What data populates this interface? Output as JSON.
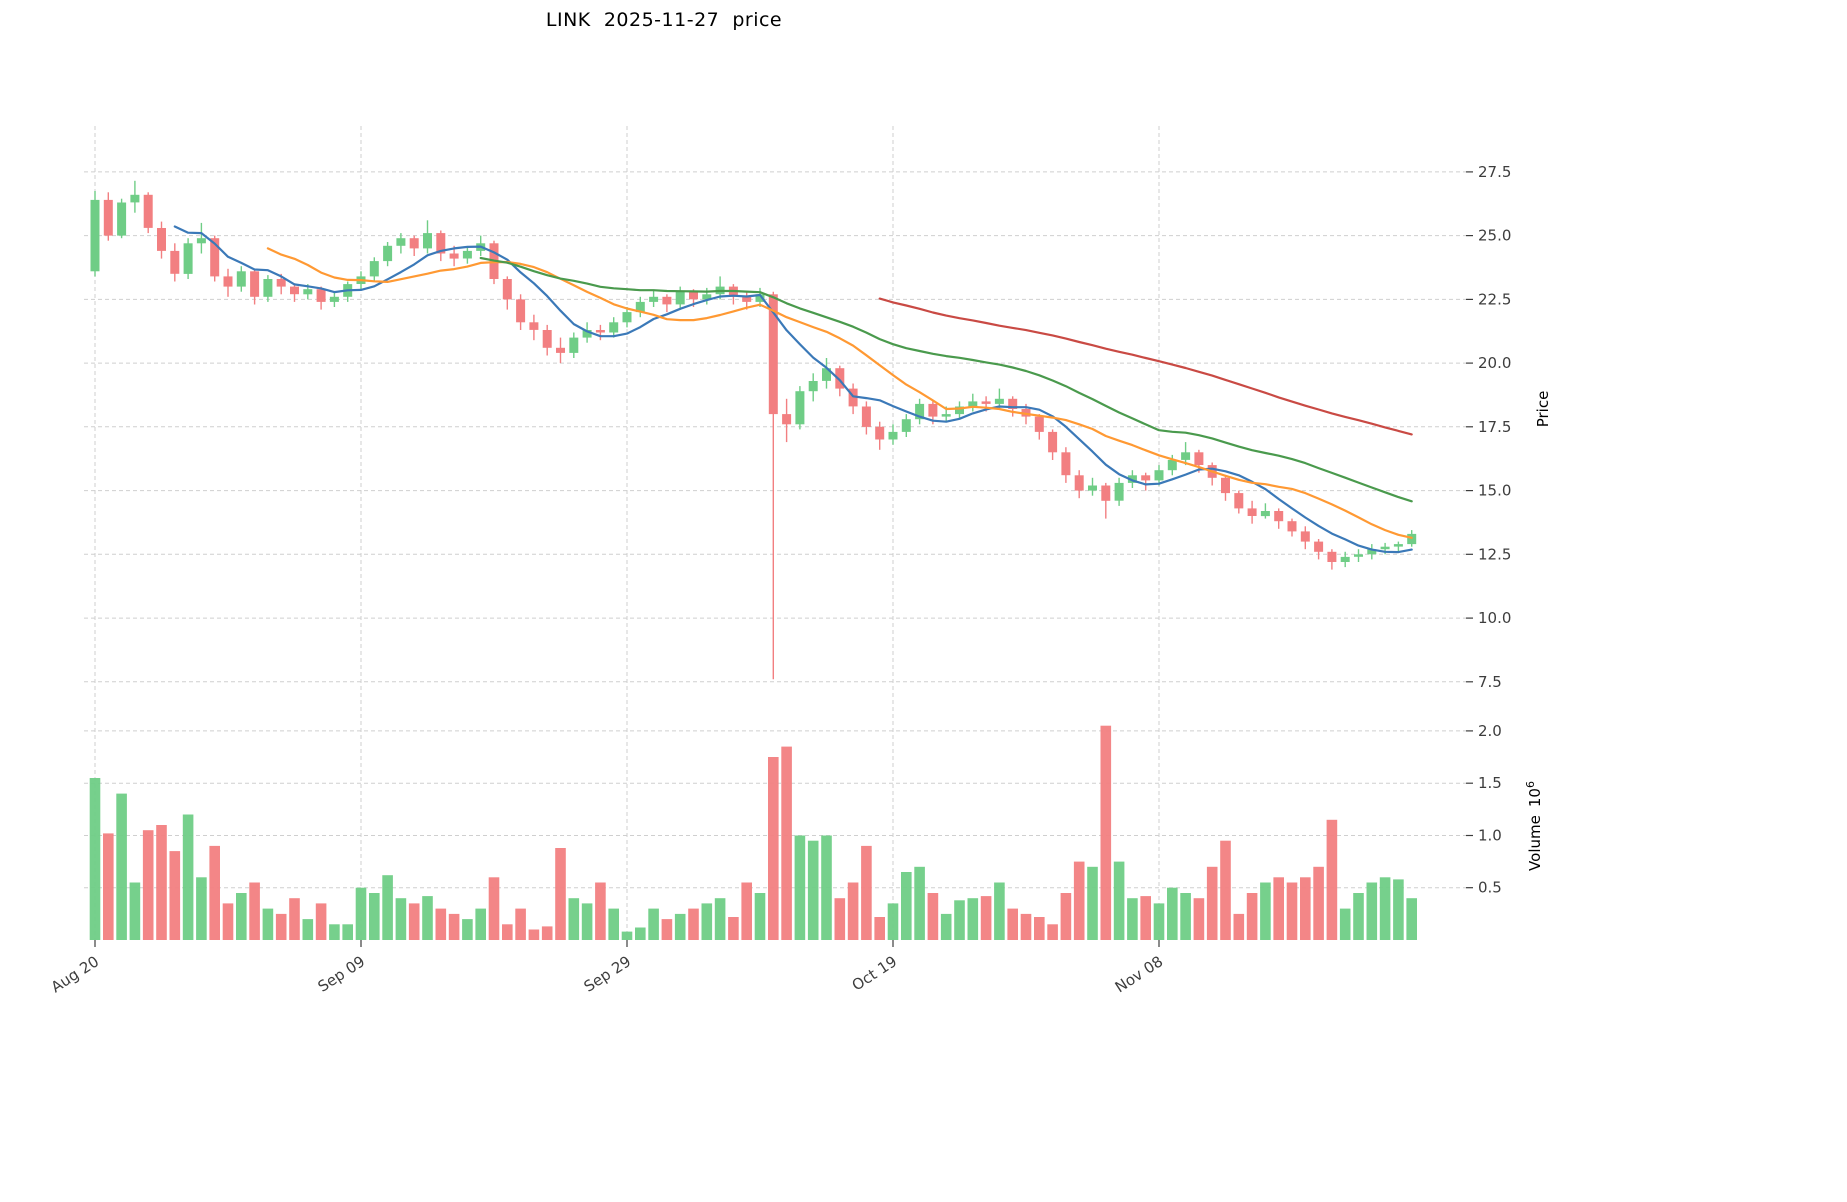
{
  "title": "LINK  2025-11-27  price",
  "axes": {
    "price_label": "Price",
    "volume_label": "Volume",
    "volume_unit_base": "10",
    "volume_unit_exp": "6"
  },
  "colors": {
    "up": "#6fcd86",
    "down": "#f27f81",
    "grid": "#cfcfcf",
    "tick_text": "#3d3d3d"
  },
  "chart_data": {
    "type": "candlestick",
    "title": "LINK 2025-11-27 price",
    "ylabel": "Price",
    "ylabel_volume": "Volume 10^6",
    "x_tick_labels": [
      "Aug 20",
      "Sep 09",
      "Sep 29",
      "Oct 19",
      "Nov 08"
    ],
    "x_tick_indices": [
      0,
      20,
      40,
      60,
      80
    ],
    "price_ticks": [
      7.5,
      10.0,
      12.5,
      15.0,
      17.5,
      20.0,
      22.5,
      25.0,
      27.5
    ],
    "volume_ticks": [
      0.5,
      1.0,
      1.5,
      2.0
    ],
    "price_ylim": [
      7.1,
      29.3
    ],
    "volume_ylim": [
      0,
      2.2
    ],
    "grid": true,
    "legend": "none",
    "moving_averages": [
      {
        "name": "MA7",
        "period": 7,
        "color": "#3b79b8"
      },
      {
        "name": "MA14",
        "period": 14,
        "color": "#ff9933"
      },
      {
        "name": "MA30",
        "period": 30,
        "color": "#4a9a4d"
      },
      {
        "name": "MA60",
        "period": 60,
        "color": "#c94a44"
      }
    ],
    "ohlc": [
      [
        23.6,
        26.75,
        23.4,
        26.4
      ],
      [
        26.4,
        26.7,
        24.8,
        25.0
      ],
      [
        25.0,
        26.45,
        24.9,
        26.3
      ],
      [
        26.3,
        27.15,
        25.9,
        26.6
      ],
      [
        26.6,
        26.7,
        25.1,
        25.3
      ],
      [
        25.3,
        25.55,
        24.1,
        24.4
      ],
      [
        24.4,
        24.7,
        23.2,
        23.5
      ],
      [
        23.5,
        24.9,
        23.3,
        24.7
      ],
      [
        24.7,
        25.5,
        24.3,
        24.9
      ],
      [
        24.9,
        25.0,
        23.2,
        23.4
      ],
      [
        23.4,
        23.7,
        22.6,
        23.0
      ],
      [
        23.0,
        23.8,
        22.8,
        23.6
      ],
      [
        23.6,
        23.7,
        22.3,
        22.6
      ],
      [
        22.6,
        23.45,
        22.4,
        23.3
      ],
      [
        23.3,
        23.5,
        22.7,
        23.0
      ],
      [
        23.0,
        23.1,
        22.4,
        22.7
      ],
      [
        22.7,
        23.1,
        22.5,
        22.9
      ],
      [
        22.9,
        23.0,
        22.1,
        22.4
      ],
      [
        22.4,
        22.8,
        22.2,
        22.6
      ],
      [
        22.6,
        23.2,
        22.4,
        23.1
      ],
      [
        23.1,
        23.6,
        22.9,
        23.4
      ],
      [
        23.4,
        24.15,
        23.2,
        24.0
      ],
      [
        24.0,
        24.75,
        23.8,
        24.6
      ],
      [
        24.6,
        25.1,
        24.3,
        24.9
      ],
      [
        24.9,
        25.0,
        24.2,
        24.5
      ],
      [
        24.5,
        25.6,
        24.3,
        25.1
      ],
      [
        25.1,
        25.2,
        24.0,
        24.3
      ],
      [
        24.3,
        24.6,
        23.8,
        24.1
      ],
      [
        24.1,
        24.55,
        23.9,
        24.4
      ],
      [
        24.4,
        25.0,
        24.2,
        24.7
      ],
      [
        24.7,
        24.8,
        23.1,
        23.3
      ],
      [
        23.3,
        23.4,
        22.1,
        22.5
      ],
      [
        22.5,
        22.7,
        21.3,
        21.6
      ],
      [
        21.6,
        21.9,
        20.9,
        21.3
      ],
      [
        21.3,
        21.5,
        20.3,
        20.6
      ],
      [
        20.6,
        21.0,
        20.0,
        20.4
      ],
      [
        20.4,
        21.2,
        20.2,
        21.0
      ],
      [
        21.0,
        21.6,
        20.8,
        21.3
      ],
      [
        21.3,
        21.5,
        20.9,
        21.2
      ],
      [
        21.2,
        21.8,
        21.0,
        21.6
      ],
      [
        21.6,
        22.2,
        21.4,
        22.0
      ],
      [
        22.0,
        22.6,
        21.8,
        22.4
      ],
      [
        22.4,
        22.85,
        22.2,
        22.6
      ],
      [
        22.6,
        22.7,
        22.0,
        22.3
      ],
      [
        22.3,
        23.0,
        22.1,
        22.8
      ],
      [
        22.8,
        22.9,
        22.2,
        22.5
      ],
      [
        22.5,
        22.95,
        22.3,
        22.7
      ],
      [
        22.7,
        23.4,
        22.5,
        23.0
      ],
      [
        23.0,
        23.1,
        22.3,
        22.6
      ],
      [
        22.6,
        22.8,
        22.1,
        22.4
      ],
      [
        22.4,
        22.95,
        22.2,
        22.7
      ],
      [
        22.7,
        22.8,
        7.6,
        18.0
      ],
      [
        18.0,
        18.6,
        16.9,
        17.6
      ],
      [
        17.6,
        19.1,
        17.4,
        18.9
      ],
      [
        18.9,
        19.6,
        18.5,
        19.3
      ],
      [
        19.3,
        20.2,
        19.0,
        19.8
      ],
      [
        19.8,
        19.9,
        18.7,
        19.0
      ],
      [
        19.0,
        19.2,
        18.0,
        18.3
      ],
      [
        18.3,
        18.5,
        17.2,
        17.5
      ],
      [
        17.5,
        17.7,
        16.6,
        17.0
      ],
      [
        17.0,
        17.6,
        16.8,
        17.3
      ],
      [
        17.3,
        18.0,
        17.1,
        17.8
      ],
      [
        17.8,
        18.6,
        17.6,
        18.4
      ],
      [
        18.4,
        18.5,
        17.6,
        17.9
      ],
      [
        17.9,
        18.3,
        17.7,
        18.0
      ],
      [
        18.0,
        18.5,
        17.8,
        18.3
      ],
      [
        18.3,
        18.8,
        18.1,
        18.5
      ],
      [
        18.5,
        18.7,
        18.1,
        18.4
      ],
      [
        18.4,
        19.0,
        18.2,
        18.6
      ],
      [
        18.6,
        18.7,
        17.9,
        18.2
      ],
      [
        18.2,
        18.4,
        17.6,
        17.9
      ],
      [
        17.9,
        18.0,
        17.0,
        17.3
      ],
      [
        17.3,
        17.4,
        16.2,
        16.5
      ],
      [
        16.5,
        16.7,
        15.3,
        15.6
      ],
      [
        15.6,
        15.8,
        14.7,
        15.0
      ],
      [
        15.0,
        15.5,
        14.8,
        15.2
      ],
      [
        15.2,
        15.3,
        13.9,
        14.6
      ],
      [
        14.6,
        15.5,
        14.4,
        15.3
      ],
      [
        15.3,
        15.8,
        15.1,
        15.6
      ],
      [
        15.6,
        15.7,
        15.0,
        15.4
      ],
      [
        15.4,
        16.0,
        15.2,
        15.8
      ],
      [
        15.8,
        16.4,
        15.6,
        16.2
      ],
      [
        16.2,
        16.9,
        16.0,
        16.5
      ],
      [
        16.5,
        16.6,
        15.7,
        16.0
      ],
      [
        16.0,
        16.1,
        15.2,
        15.5
      ],
      [
        15.5,
        15.6,
        14.6,
        14.9
      ],
      [
        14.9,
        15.0,
        14.1,
        14.3
      ],
      [
        14.3,
        14.6,
        13.7,
        14.0
      ],
      [
        14.0,
        14.5,
        13.9,
        14.2
      ],
      [
        14.2,
        14.3,
        13.5,
        13.8
      ],
      [
        13.8,
        13.9,
        13.2,
        13.4
      ],
      [
        13.4,
        13.6,
        12.7,
        13.0
      ],
      [
        13.0,
        13.1,
        12.3,
        12.6
      ],
      [
        12.6,
        12.7,
        11.9,
        12.2
      ],
      [
        12.2,
        12.6,
        12.0,
        12.4
      ],
      [
        12.4,
        12.7,
        12.2,
        12.5
      ],
      [
        12.5,
        12.9,
        12.3,
        12.7
      ],
      [
        12.7,
        12.95,
        12.5,
        12.8
      ],
      [
        12.8,
        13.0,
        12.6,
        12.9
      ],
      [
        12.9,
        13.45,
        12.8,
        13.3
      ]
    ],
    "volume": [
      1.55,
      1.02,
      1.4,
      0.55,
      1.05,
      1.1,
      0.85,
      1.2,
      0.6,
      0.9,
      0.35,
      0.45,
      0.55,
      0.3,
      0.25,
      0.4,
      0.2,
      0.35,
      0.15,
      0.15,
      0.5,
      0.45,
      0.62,
      0.4,
      0.35,
      0.42,
      0.3,
      0.25,
      0.2,
      0.3,
      0.6,
      0.15,
      0.3,
      0.1,
      0.13,
      0.88,
      0.4,
      0.35,
      0.55,
      0.3,
      0.08,
      0.12,
      0.3,
      0.2,
      0.25,
      0.3,
      0.35,
      0.4,
      0.22,
      0.55,
      0.45,
      1.75,
      1.85,
      1.0,
      0.95,
      1.0,
      0.4,
      0.55,
      0.9,
      0.22,
      0.35,
      0.65,
      0.7,
      0.45,
      0.25,
      0.38,
      0.4,
      0.42,
      0.55,
      0.3,
      0.25,
      0.22,
      0.15,
      0.45,
      0.75,
      0.7,
      2.05,
      0.75,
      0.4,
      0.42,
      0.35,
      0.5,
      0.45,
      0.4,
      0.7,
      0.95,
      0.25,
      0.45,
      0.55,
      0.6,
      0.55,
      0.6,
      0.7,
      1.15,
      0.3,
      0.45,
      0.55,
      0.6,
      0.58,
      0.4
    ]
  }
}
